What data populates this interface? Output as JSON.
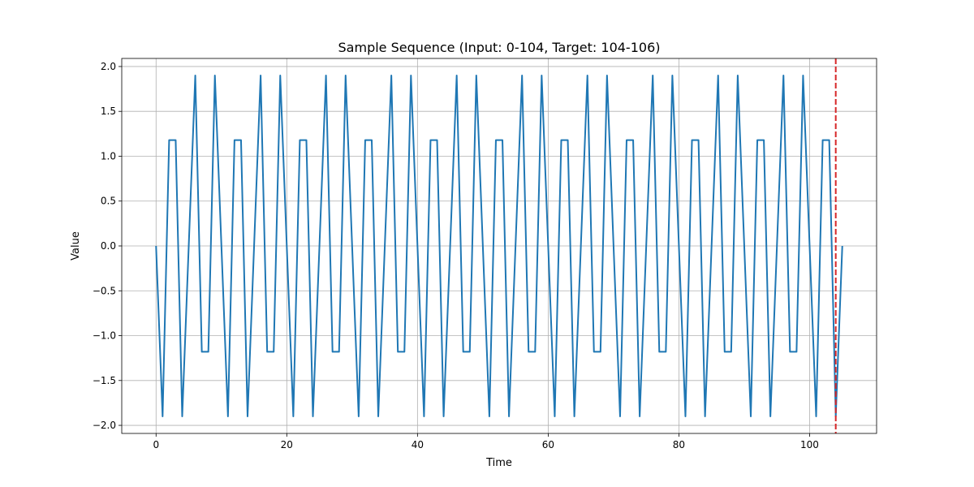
{
  "chart_data": {
    "type": "line",
    "title": "Sample Sequence (Input: 0-104, Target: 104-106)",
    "xlabel": "Time",
    "ylabel": "Value",
    "xlim": [
      -5.25,
      110.25
    ],
    "ylim": [
      -2.09,
      2.09
    ],
    "xticks": [
      0,
      20,
      40,
      60,
      80,
      100
    ],
    "yticks": [
      -2.0,
      -1.5,
      -1.0,
      -0.5,
      0.0,
      0.5,
      1.0,
      1.5,
      2.0
    ],
    "xtick_labels": [
      "0",
      "20",
      "40",
      "60",
      "80",
      "100"
    ],
    "ytick_labels": [
      "−2.0",
      "−1.5",
      "−1.0",
      "−0.5",
      "0.0",
      "0.5",
      "1.0",
      "1.5",
      "2.0"
    ],
    "grid": true,
    "series": [
      {
        "color": "#1f77b4",
        "x": [
          0,
          1,
          2,
          3,
          4,
          5,
          6,
          7,
          8,
          9,
          10,
          11,
          12,
          13,
          14,
          15,
          16,
          17,
          18,
          19,
          20,
          21,
          22,
          23,
          24,
          25,
          26,
          27,
          28,
          29,
          30,
          31,
          32,
          33,
          34,
          35,
          36,
          37,
          38,
          39,
          40,
          41,
          42,
          43,
          44,
          45,
          46,
          47,
          48,
          49,
          50,
          51,
          52,
          53,
          54,
          55,
          56,
          57,
          58,
          59,
          60,
          61,
          62,
          63,
          64,
          65,
          66,
          67,
          68,
          69,
          70,
          71,
          72,
          73,
          74,
          75,
          76,
          77,
          78,
          79,
          80,
          81,
          82,
          83,
          84,
          85,
          86,
          87,
          88,
          89,
          90,
          91,
          92,
          93,
          94,
          95,
          96,
          97,
          98,
          99,
          100,
          101,
          102,
          103,
          104,
          105
        ],
        "y": [
          0.0,
          -1.9,
          1.18,
          1.18,
          -1.9,
          0.0,
          1.9,
          -1.18,
          -1.18,
          1.9,
          0.0,
          -1.9,
          1.18,
          1.18,
          -1.9,
          0.0,
          1.9,
          -1.18,
          -1.18,
          1.9,
          0.0,
          -1.9,
          1.18,
          1.18,
          -1.9,
          0.0,
          1.9,
          -1.18,
          -1.18,
          1.9,
          0.0,
          -1.9,
          1.18,
          1.18,
          -1.9,
          0.0,
          1.9,
          -1.18,
          -1.18,
          1.9,
          0.0,
          -1.9,
          1.18,
          1.18,
          -1.9,
          0.0,
          1.9,
          -1.18,
          -1.18,
          1.9,
          0.0,
          -1.9,
          1.18,
          1.18,
          -1.9,
          0.0,
          1.9,
          -1.18,
          -1.18,
          1.9,
          0.0,
          -1.9,
          1.18,
          1.18,
          -1.9,
          0.0,
          1.9,
          -1.18,
          -1.18,
          1.9,
          0.0,
          -1.9,
          1.18,
          1.18,
          -1.9,
          0.0,
          1.9,
          -1.18,
          -1.18,
          1.9,
          0.0,
          -1.9,
          1.18,
          1.18,
          -1.9,
          0.0,
          1.9,
          -1.18,
          -1.18,
          1.9,
          0.0,
          -1.9,
          1.18,
          1.18,
          -1.9,
          0.0,
          1.9,
          -1.18,
          -1.18,
          1.9,
          0.0,
          -1.9,
          1.18,
          1.18,
          -1.9,
          0.0
        ]
      }
    ],
    "annotations": [
      {
        "type": "vline",
        "x": 104,
        "color": "#d62728",
        "style": "dashed"
      }
    ]
  }
}
